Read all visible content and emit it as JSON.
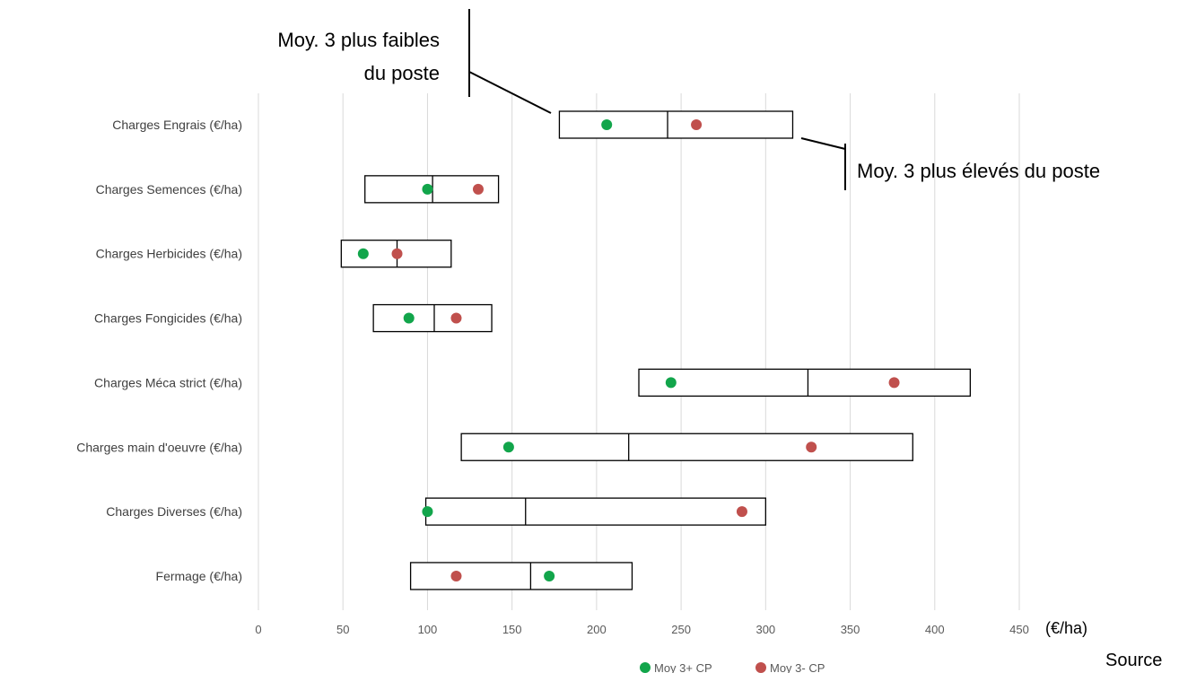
{
  "chart_data": {
    "type": "box-range",
    "categories": [
      "Charges Engrais (€/ha)",
      "Charges Semences (€/ha)",
      "Charges Herbicides (€/ha)",
      "Charges Fongicides (€/ha)",
      "Charges Méca strict (€/ha)",
      "Charges main d'oeuvre (€/ha)",
      "Charges Diverses (€/ha)",
      "Fermage (€/ha)"
    ],
    "ranges": [
      {
        "low": 178,
        "mid": 242,
        "high": 316
      },
      {
        "low": 63,
        "mid": 103,
        "high": 142
      },
      {
        "low": 49,
        "mid": 82,
        "high": 114
      },
      {
        "low": 68,
        "mid": 104,
        "high": 138
      },
      {
        "low": 225,
        "mid": 325,
        "high": 421
      },
      {
        "low": 120,
        "mid": 219,
        "high": 387
      },
      {
        "low": 99,
        "mid": 158,
        "high": 300
      },
      {
        "low": 90,
        "mid": 161,
        "high": 221
      }
    ],
    "series": [
      {
        "name": "Moy 3+ CP",
        "color": "#12a54b",
        "values": [
          206,
          100,
          62,
          89,
          244,
          148,
          100,
          172
        ]
      },
      {
        "name": "Moy 3- CP",
        "color": "#c0504d",
        "values": [
          259,
          130,
          82,
          117,
          376,
          327,
          286,
          117
        ]
      }
    ],
    "x_ticks": [
      0,
      50,
      100,
      150,
      200,
      250,
      300,
      350,
      400,
      450
    ],
    "xlim": [
      0,
      450
    ],
    "unit_label": "(€/ha)",
    "grid": "vertical",
    "legend_position": "bottom",
    "annotations": {
      "low_line1": "Moy. 3 plus faibles",
      "low_line2": "du poste",
      "high": "Moy. 3 plus élevés du poste"
    },
    "source_text": "Source"
  }
}
